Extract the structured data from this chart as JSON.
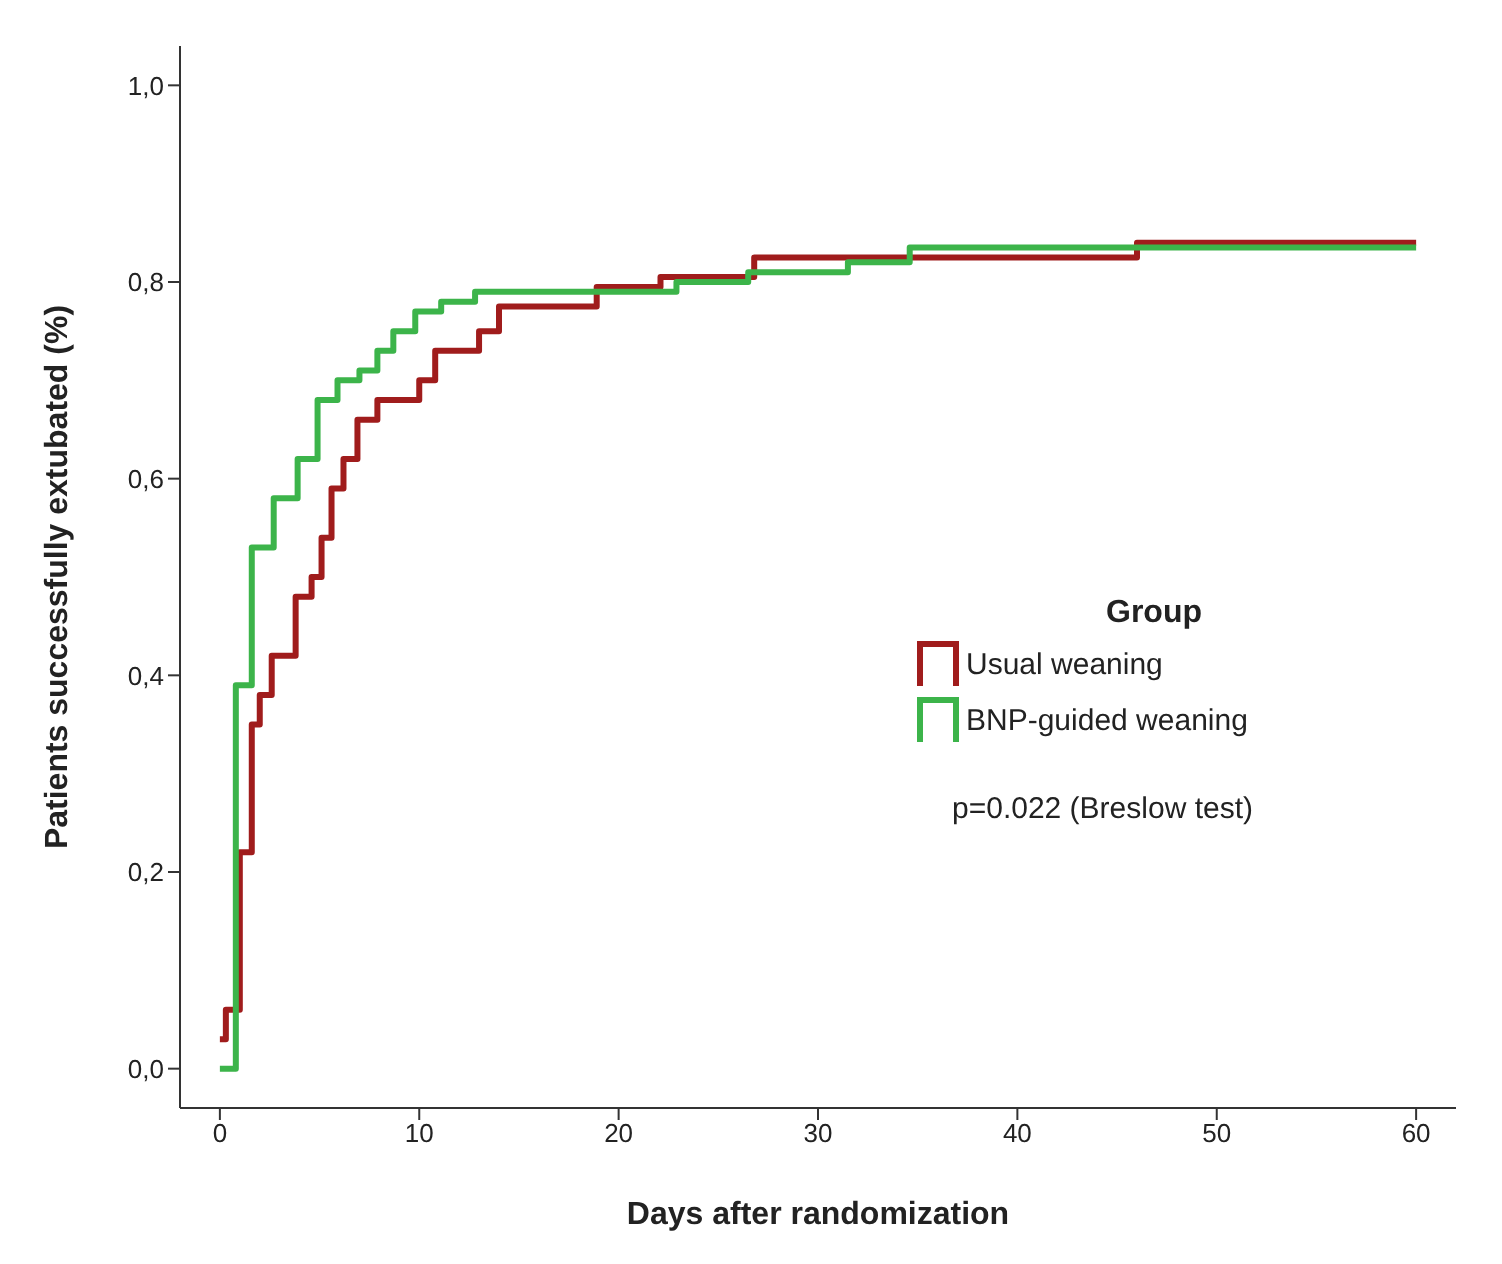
{
  "chart_data": {
    "type": "step",
    "xlabel": "Days after randomization",
    "ylabel": "Patients successfully extubated (%)",
    "legend_title": "Group",
    "legend": "right",
    "xlim": [
      -2,
      62
    ],
    "xticks": [
      0,
      10,
      20,
      30,
      40,
      50,
      60
    ],
    "ylim": [
      -0.04,
      1.04
    ],
    "yticks": [
      {
        "value": 0,
        "label": "0,0"
      },
      {
        "value": 0.2,
        "label": "0,2"
      },
      {
        "value": 0.4,
        "label": "0,4"
      },
      {
        "value": 0.6,
        "label": "0,6"
      },
      {
        "value": 0.8,
        "label": "0,8"
      },
      {
        "value": 1,
        "label": "1,0"
      }
    ],
    "line_style": "solid",
    "annotations": [
      "p=0.022 (Breslow test)"
    ],
    "series": [
      {
        "name": "Usual weaning",
        "color": "#a01c1c",
        "x": [
          0,
          0.3,
          1,
          1.6,
          2,
          2.6,
          3.8,
          4.6,
          5.1,
          5.6,
          6.2,
          6.9,
          7.9,
          10,
          10.8,
          13,
          14,
          18.9,
          22.1,
          26.8,
          46,
          60
        ],
        "values": [
          0.03,
          0.06,
          0.22,
          0.35,
          0.38,
          0.42,
          0.48,
          0.5,
          0.54,
          0.59,
          0.62,
          0.66,
          0.68,
          0.7,
          0.73,
          0.75,
          0.775,
          0.795,
          0.805,
          0.825,
          0.84,
          0.84
        ]
      },
      {
        "name": "BNP-guided weaning",
        "color": "#3cb44a",
        "x": [
          0,
          0.8,
          1.6,
          2.7,
          3.9,
          4.9,
          5.9,
          7,
          7.9,
          8.7,
          9.8,
          11.1,
          12.8,
          22.9,
          26.5,
          31.5,
          34.6,
          60
        ],
        "values": [
          0,
          0.39,
          0.53,
          0.58,
          0.62,
          0.68,
          0.7,
          0.71,
          0.73,
          0.75,
          0.77,
          0.78,
          0.79,
          0.8,
          0.81,
          0.82,
          0.835,
          0.835
        ]
      }
    ]
  }
}
